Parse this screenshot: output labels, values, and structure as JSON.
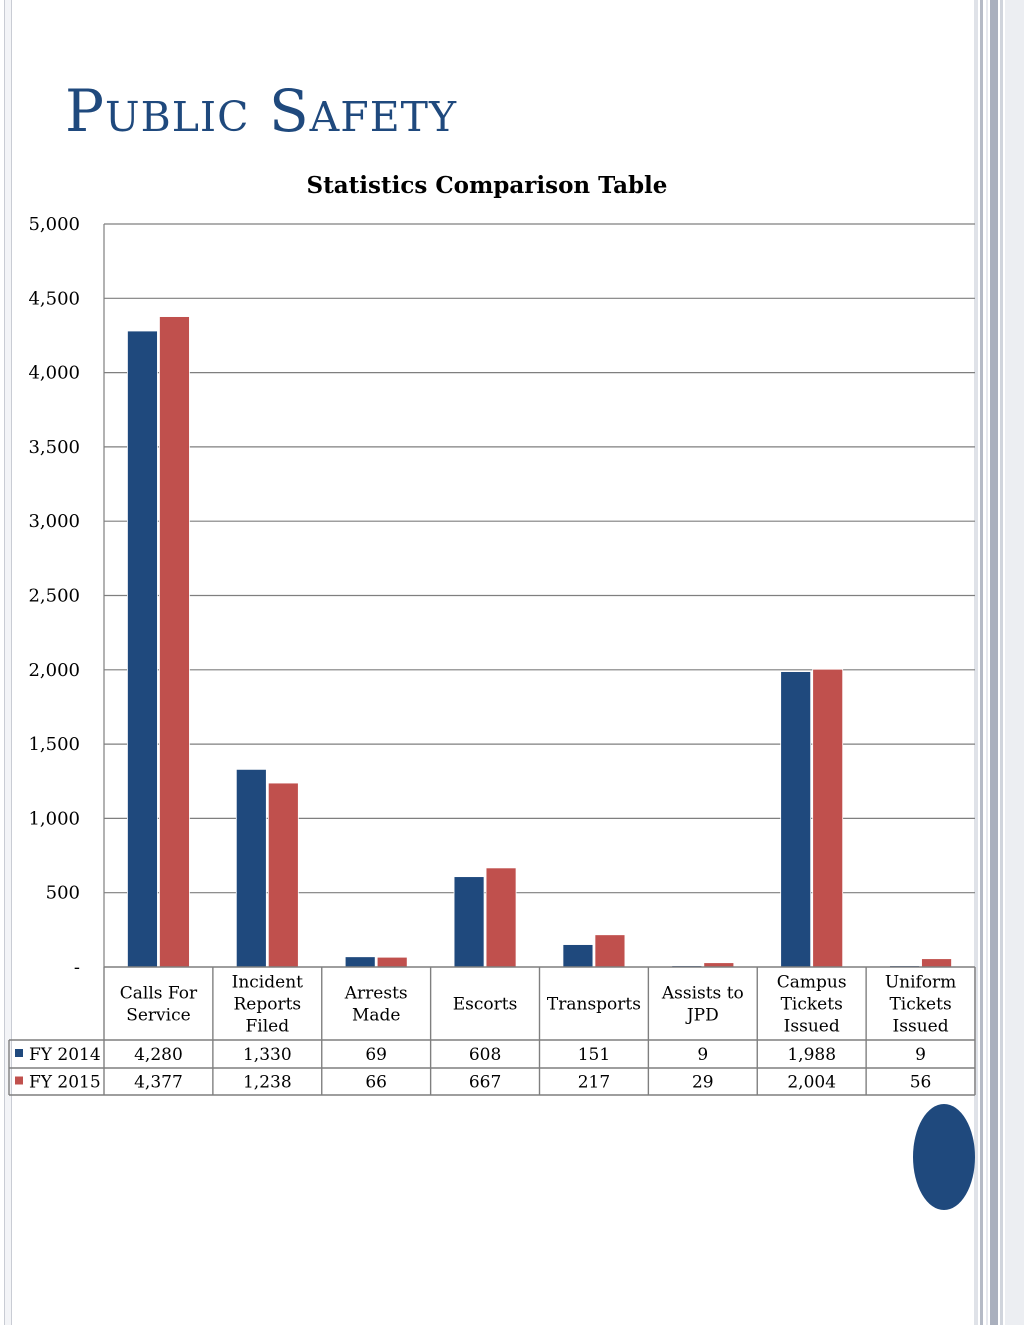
{
  "page": {
    "title": "Public Safety"
  },
  "colors": {
    "fy2014": "#1f497d",
    "fy2015": "#c0504d",
    "title": "#1f497d",
    "grid": "#7f7f7f"
  },
  "chart_data": {
    "type": "bar",
    "title": "Statistics Comparison Table",
    "xlabel": "",
    "ylabel": "",
    "ylim": [
      0,
      5000
    ],
    "y_ticks": [
      0,
      500,
      1000,
      1500,
      2000,
      2500,
      3000,
      3500,
      4000,
      4500,
      5000
    ],
    "y_tick_labels": [
      "-",
      "500",
      "1,000",
      "1,500",
      "2,000",
      "2,500",
      "3,000",
      "3,500",
      "4,000",
      "4,500",
      "5,000"
    ],
    "grid": true,
    "legend": "data-table",
    "categories": [
      [
        "Calls For",
        "Service"
      ],
      [
        "Incident",
        "Reports",
        "Filed"
      ],
      [
        "Arrests",
        "Made"
      ],
      [
        "Escorts"
      ],
      [
        "Transports"
      ],
      [
        "Assists to",
        "JPD"
      ],
      [
        "Campus",
        "Tickets",
        "Issued"
      ],
      [
        "Uniform",
        "Tickets",
        "Issued"
      ]
    ],
    "series": [
      {
        "name": "FY 2014",
        "values": [
          4280,
          1330,
          69,
          608,
          151,
          9,
          1988,
          9
        ],
        "labels": [
          "4,280",
          "1,330",
          "69",
          "608",
          "151",
          "9",
          "1,988",
          "9"
        ]
      },
      {
        "name": "FY 2015",
        "values": [
          4377,
          1238,
          66,
          667,
          217,
          29,
          2004,
          56
        ],
        "labels": [
          "4,377",
          "1,238",
          "66",
          "667",
          "217",
          "29",
          "2,004",
          "56"
        ]
      }
    ]
  }
}
